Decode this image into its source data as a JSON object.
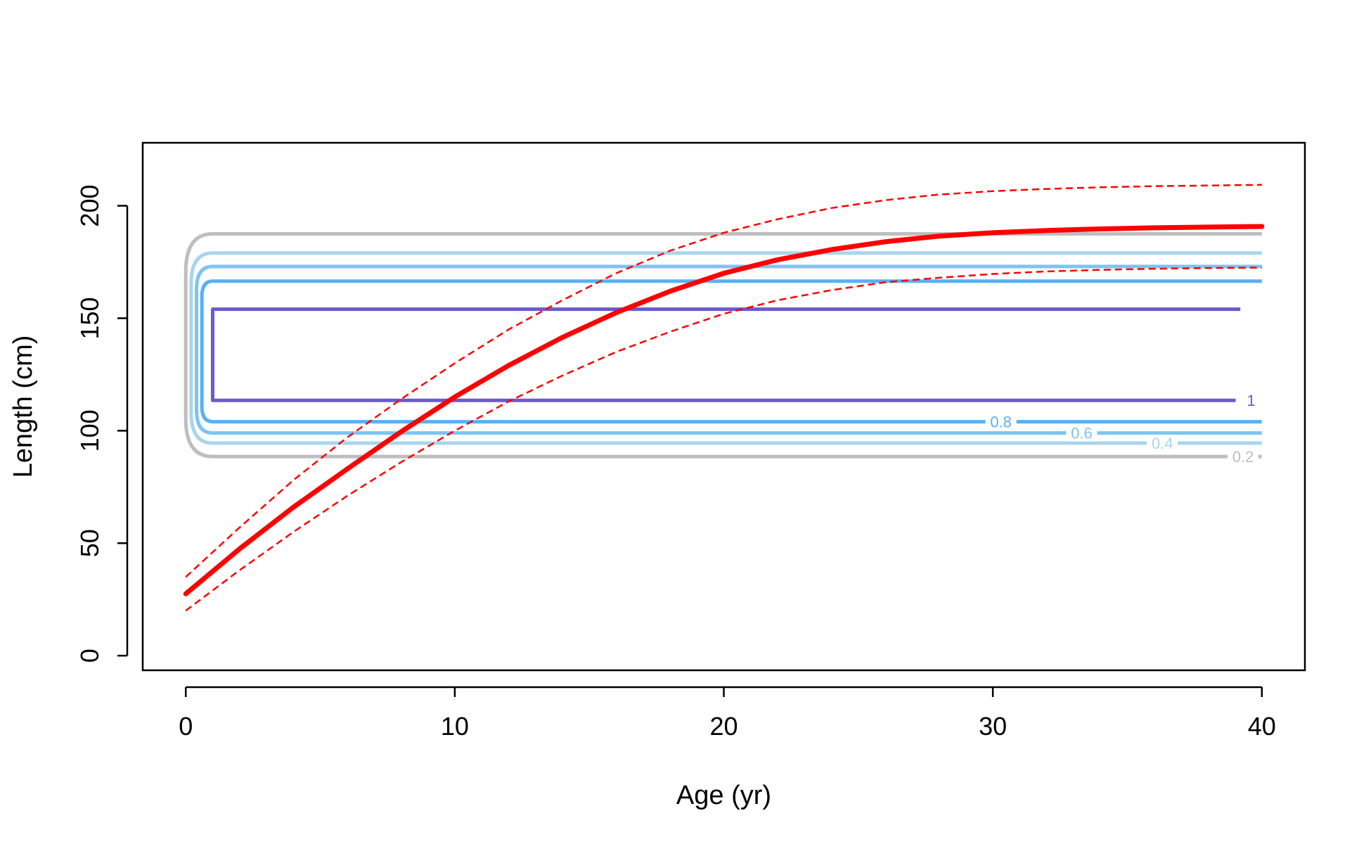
{
  "chart_data": {
    "type": "line",
    "title": "",
    "xlabel": "Age (yr)",
    "ylabel": "Length (cm)",
    "xlim": [
      -1.6,
      41.6
    ],
    "ylim": [
      -6.5,
      228
    ],
    "xticks": [
      0,
      10,
      20,
      30,
      40
    ],
    "yticks": [
      0,
      50,
      100,
      150,
      200
    ],
    "grid": false,
    "legend": "none",
    "growth_curve": {
      "color": "#ff0000",
      "x": [
        0,
        2,
        4,
        6,
        8,
        10,
        12,
        14,
        16,
        18,
        20,
        22,
        24,
        26,
        28,
        30,
        32,
        34,
        36,
        38,
        40
      ],
      "mean": [
        27.5,
        47.5,
        66,
        83,
        99.5,
        115,
        129,
        141.5,
        152.5,
        162,
        170,
        176,
        180.5,
        184,
        186.5,
        188,
        189,
        189.7,
        190.2,
        190.5,
        190.8
      ],
      "lower": [
        20,
        38,
        55,
        71,
        86,
        100,
        113,
        124.5,
        135,
        144,
        152,
        158,
        162.5,
        166,
        168,
        169.7,
        170.8,
        171.5,
        172,
        172.3,
        172.5
      ],
      "upper": [
        35,
        57,
        78,
        97,
        114,
        130,
        145,
        158,
        170,
        180,
        188,
        194,
        199,
        202.5,
        205,
        206.5,
        207.5,
        208.2,
        208.7,
        209,
        209.3
      ]
    },
    "contours": [
      {
        "level": "0.2",
        "color": "#bebebe",
        "x_start": 1,
        "x_end": 40,
        "y_low": 88.5,
        "y_high": 187.5,
        "corner": 1.0
      },
      {
        "level": "0.4",
        "color": "#a8d5ec",
        "x_start": 1,
        "x_end": 40,
        "y_low": 94.5,
        "y_high": 179,
        "corner": 0.8
      },
      {
        "level": "0.6",
        "color": "#7cc4f2",
        "x_start": 1,
        "x_end": 40,
        "y_low": 99,
        "y_high": 173,
        "corner": 0.6
      },
      {
        "level": "0.8",
        "color": "#5ab0f5",
        "x_start": 1,
        "x_end": 40,
        "y_low": 104,
        "y_high": 166.5,
        "corner": 0.4
      },
      {
        "level": "1",
        "color": "#6a5acd",
        "x_start": 1,
        "x_end": 39.2,
        "y_low": 113.5,
        "y_high": 154,
        "corner": 0.0
      }
    ],
    "contour_label_positions": [
      {
        "level": "0.2",
        "x": 39.3
      },
      {
        "level": "0.4",
        "x": 36.3
      },
      {
        "level": "0.6",
        "x": 33.3
      },
      {
        "level": "0.8",
        "x": 30.3
      },
      {
        "level": "1",
        "x": 39.6
      }
    ]
  }
}
